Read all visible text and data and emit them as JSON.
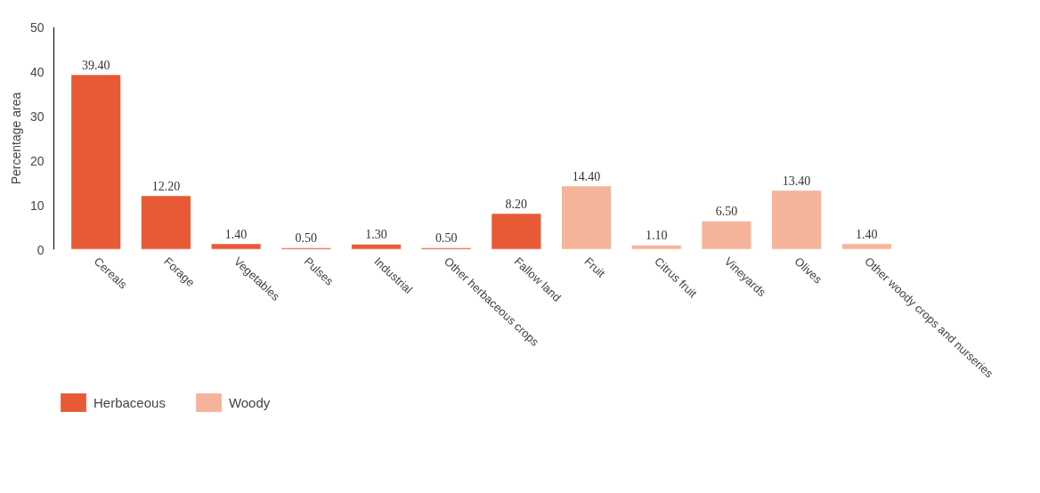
{
  "chart_data": {
    "type": "bar",
    "ylabel": "Percentage area",
    "categories": [
      "Cereals",
      "Forage",
      "Vegetables",
      "Pulses",
      "Industrial",
      "Other herbaceous crops",
      "Fallow land",
      "Fruit",
      "Citrus fruit",
      "Vineyards",
      "Olives",
      "Other woody crops and nurseries"
    ],
    "series": [
      {
        "name": "Herbaceous",
        "color": "#e85a35",
        "values": [
          39.4,
          12.2,
          1.4,
          0.5,
          1.3,
          0.5,
          8.2,
          null,
          null,
          null,
          null,
          null
        ],
        "value_labels": [
          "39.40",
          "12.20",
          "1.40",
          "0.50",
          "1.30",
          "0.50",
          "8.20",
          null,
          null,
          null,
          null,
          null
        ]
      },
      {
        "name": "Woody",
        "color": "#f5b49a",
        "values": [
          null,
          null,
          null,
          null,
          null,
          null,
          null,
          14.4,
          1.1,
          6.5,
          13.4,
          1.4
        ],
        "value_labels": [
          null,
          null,
          null,
          null,
          null,
          null,
          null,
          "14.40",
          "1.10",
          "6.50",
          "13.40",
          "1.40"
        ]
      }
    ],
    "ylim": [
      0,
      50
    ],
    "yticks": [
      0,
      10,
      20,
      30,
      40,
      50
    ],
    "grid": false,
    "legend": "bottom left"
  }
}
